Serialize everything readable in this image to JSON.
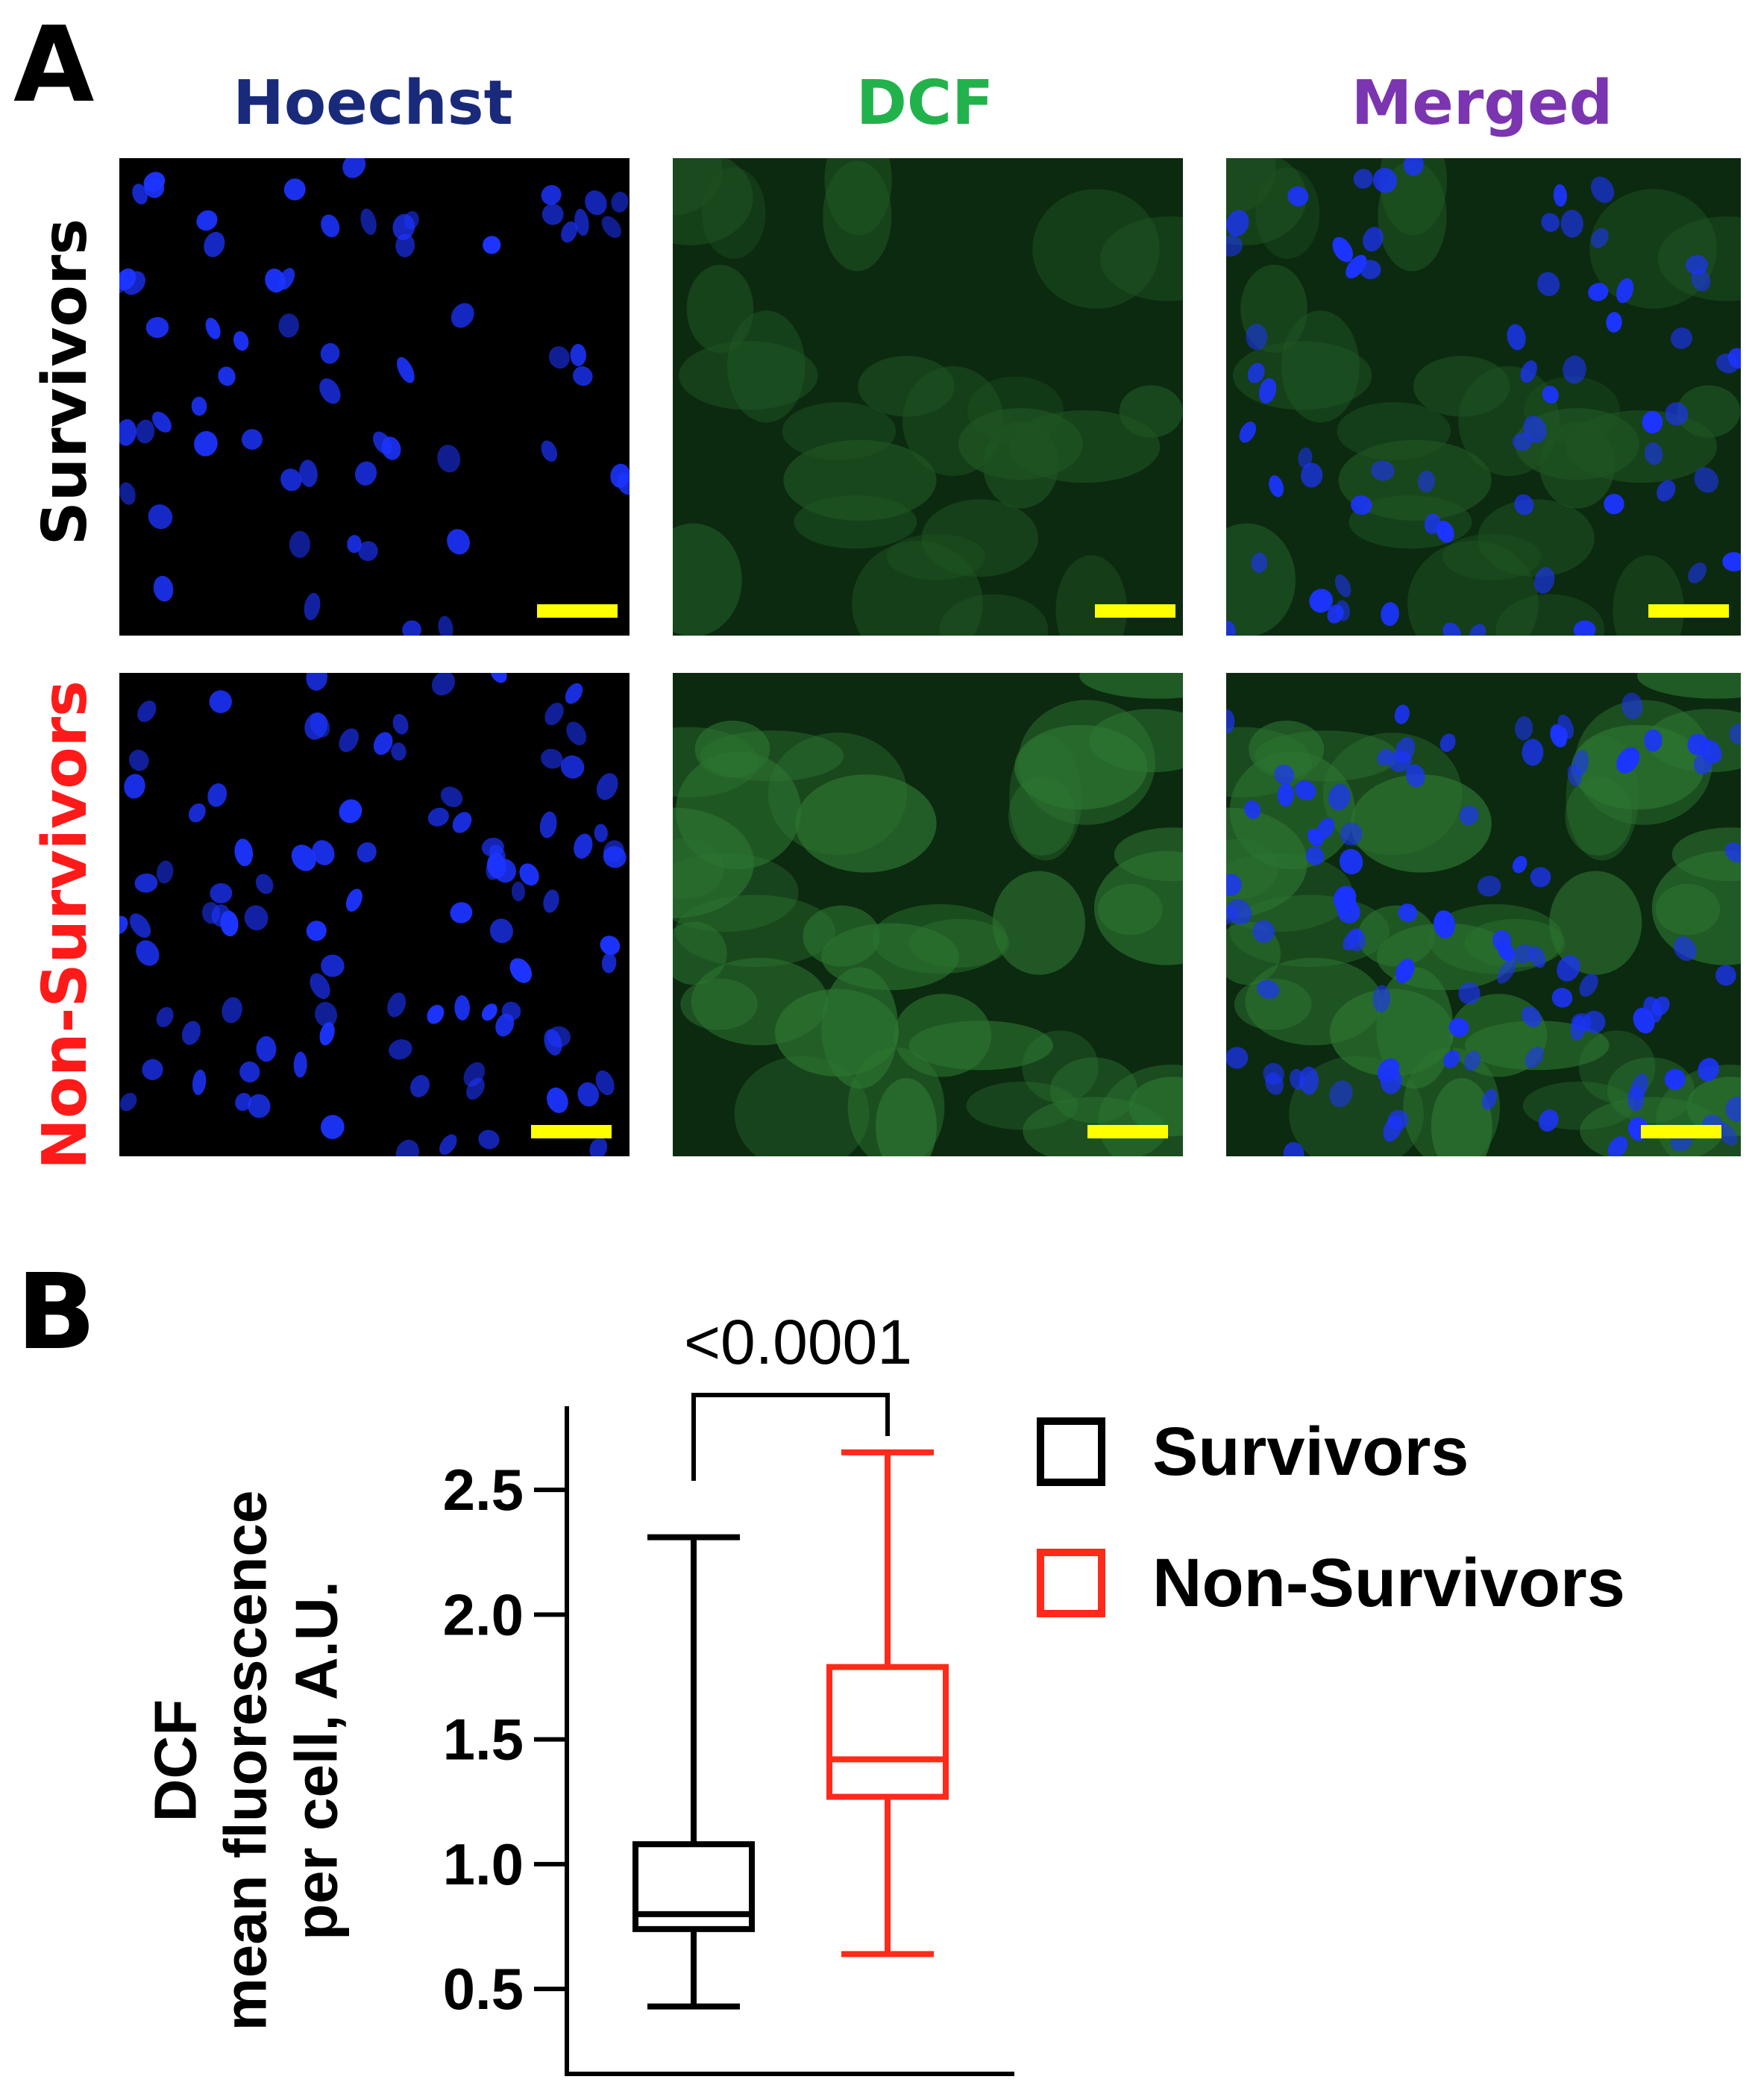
{
  "panel_a": {
    "letter": "A",
    "columns": [
      {
        "label": "Hoechst",
        "color": "#1a2a7a"
      },
      {
        "label": "DCF",
        "color": "#22b24c"
      },
      {
        "label": "Merged",
        "color": "#7b35b0"
      }
    ],
    "rows": [
      {
        "label": "Survivors",
        "color": "#000000"
      },
      {
        "label": "Non-Survivors",
        "color": "#ff1a1a"
      }
    ],
    "scale_bar_color": "#ffff00"
  },
  "panel_b": {
    "letter": "B"
  },
  "chart_data": {
    "type": "box",
    "ylabel_lines": [
      "DCF",
      "mean fluorescence",
      "per cell,  A.U."
    ],
    "ylim": [
      0.1,
      2.85
    ],
    "yticks": [
      0.5,
      1.0,
      1.5,
      2.0,
      2.5
    ],
    "ytick_labels": [
      "0.5",
      "1.0",
      "1.5",
      "2.0",
      "2.5"
    ],
    "grid": false,
    "legend_position": "top-right",
    "series": [
      {
        "name": "Survivors",
        "color": "#000000",
        "min": 0.43,
        "q1": 0.74,
        "median": 0.8,
        "q3": 1.08,
        "max": 2.31
      },
      {
        "name": "Non-Survivors",
        "color": "#ff2a1a",
        "min": 0.64,
        "q1": 1.27,
        "median": 1.42,
        "q3": 1.79,
        "max": 2.65
      }
    ],
    "annotation": {
      "text": "<0.0001",
      "between": [
        0,
        1
      ]
    }
  }
}
